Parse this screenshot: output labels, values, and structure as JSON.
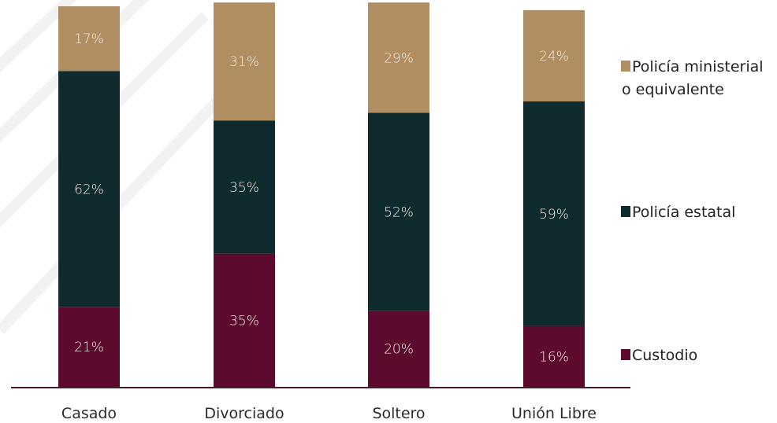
{
  "chart_data": {
    "type": "bar",
    "stacked": true,
    "categories": [
      "Casado",
      "Divorciado",
      "Soltero",
      "Unión Libre"
    ],
    "series": [
      {
        "name": "Custodio",
        "values": [
          21,
          35,
          20,
          16
        ],
        "labels": [
          "21%",
          "35%",
          "20%",
          "16%"
        ],
        "color": "#5c0a2e"
      },
      {
        "name": "Policía estatal",
        "values": [
          62,
          35,
          52,
          59
        ],
        "labels": [
          "62%",
          "35%",
          "52%",
          "59%"
        ],
        "color": "#0f2b2e"
      },
      {
        "name": "Policía ministerial o equivalente",
        "name_lines": [
          "Policía ministerial",
          "o equivalente"
        ],
        "values": [
          17,
          31,
          29,
          24
        ],
        "labels": [
          "17%",
          "31%",
          "29%",
          "24%"
        ],
        "color": "#b18e62"
      }
    ],
    "ylim": [
      0,
      100
    ],
    "legend_position": "right",
    "grid": false,
    "axis_color": "#4a1a2a"
  }
}
